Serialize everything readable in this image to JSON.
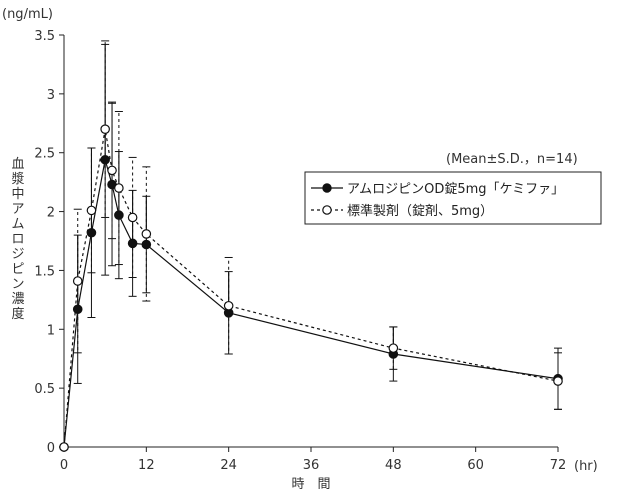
{
  "chart_data": {
    "type": "line",
    "ylabel_unit": "(ng/mL)",
    "ylabel": "血漿中アムロジピン濃度",
    "xlabel": "時　間",
    "xunit": "(hr)",
    "annotation": "(Mean±S.D.，n=14)",
    "xlim": [
      0,
      72
    ],
    "ylim": [
      0,
      3.5
    ],
    "x_ticks": [
      0,
      12,
      24,
      36,
      48,
      60,
      72
    ],
    "y_ticks": [
      0,
      0.5,
      1,
      1.5,
      2,
      2.5,
      3,
      3.5
    ],
    "legend_position": "upper-right",
    "series": [
      {
        "name": "アムロジピンOD錠5mg「ケミファ」",
        "marker": "filled-circle",
        "line": "solid",
        "x": [
          0,
          2,
          4,
          6,
          7,
          8,
          10,
          12,
          24,
          48,
          72
        ],
        "y": [
          0,
          1.17,
          1.82,
          2.44,
          2.23,
          1.97,
          1.73,
          1.72,
          1.14,
          0.79,
          0.58
        ],
        "err": [
          0,
          0.63,
          0.72,
          0.98,
          0.69,
          0.54,
          0.45,
          0.41,
          0.35,
          0.23,
          0.26
        ]
      },
      {
        "name": "標準製剤（錠剤、5mg）",
        "marker": "open-circle",
        "line": "dashed",
        "x": [
          0,
          2,
          4,
          6,
          7,
          8,
          10,
          12,
          24,
          48,
          72
        ],
        "y": [
          0,
          1.41,
          2.01,
          2.7,
          2.35,
          2.2,
          1.95,
          1.81,
          1.2,
          0.84,
          0.56
        ],
        "err": [
          0,
          0.61,
          0.53,
          0.75,
          0.58,
          0.65,
          0.51,
          0.57,
          0.41,
          0.18,
          0.24
        ]
      }
    ]
  }
}
